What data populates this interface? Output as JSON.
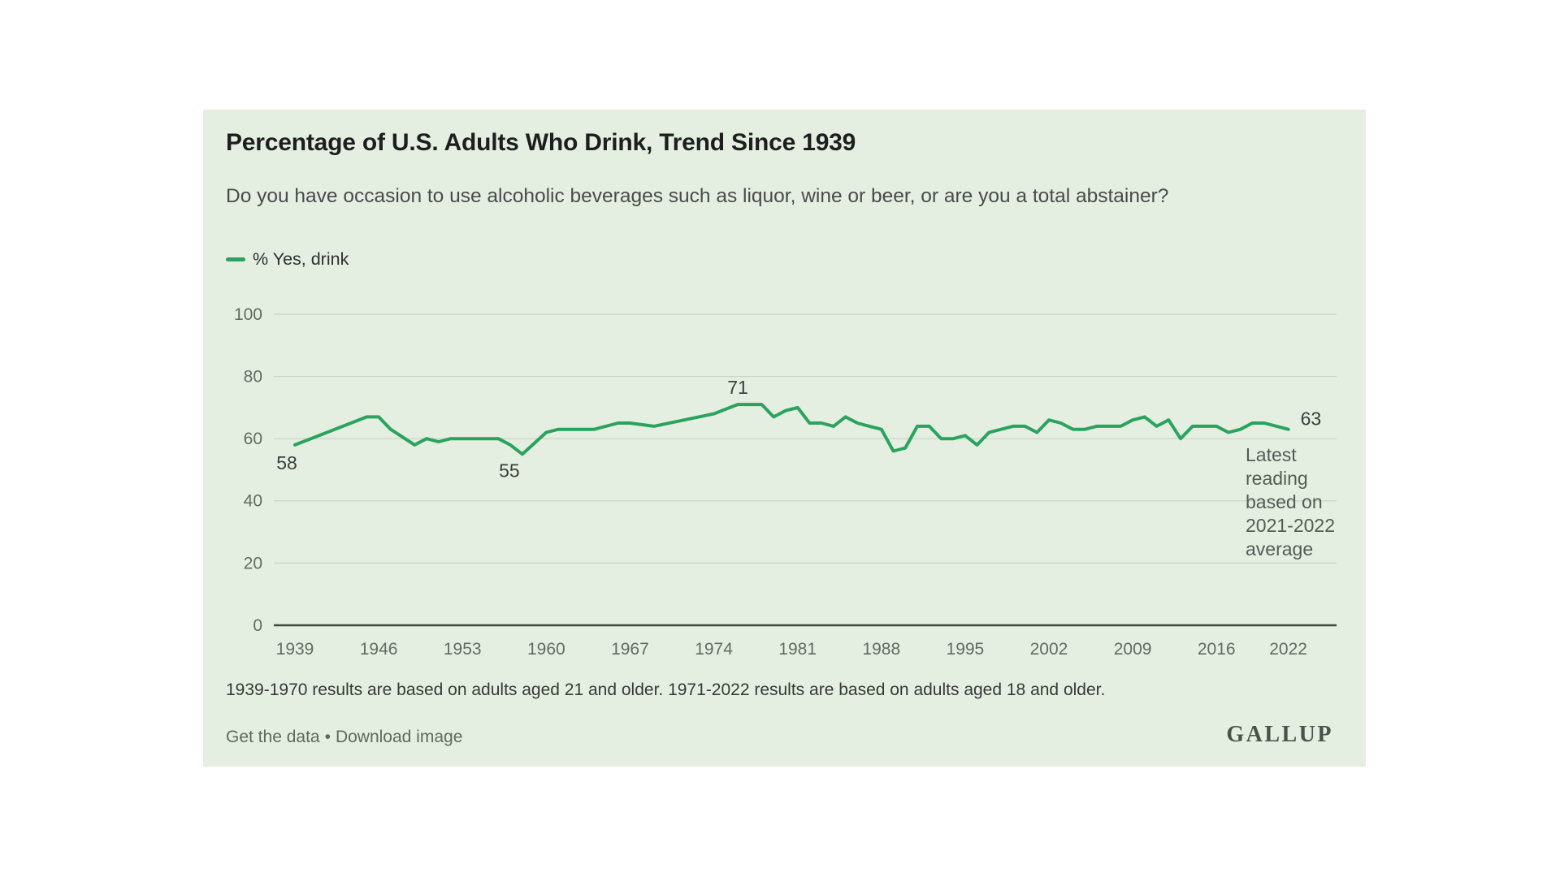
{
  "card": {
    "background": "#e4efe1"
  },
  "header": {
    "title": "Percentage of U.S. Adults Who Drink, Trend Since 1939",
    "subtitle": "Do you have occasion to use alcoholic beverages such as liquor, wine or beer, or are you a total abstainer?"
  },
  "legend": {
    "label": "% Yes, drink"
  },
  "chart_data": {
    "type": "line",
    "title": "Percentage of U.S. Adults Who Drink, Trend Since 1939",
    "question": "Do you have occasion to use alcoholic beverages such as liquor, wine or beer, or are you a total abstainer?",
    "grid": "horizontal",
    "legend_position": "top-left",
    "line_color": "#2ba35f",
    "grid_color": "#c8d4c6",
    "axis_color": "#3e473e",
    "tick_label_color": "#636b62",
    "point_label_color": "#3d3d3d",
    "ylim": [
      0,
      100
    ],
    "y_ticks": [
      0,
      20,
      40,
      60,
      80,
      100
    ],
    "x_ticks": [
      1939,
      1946,
      1953,
      1960,
      1967,
      1974,
      1981,
      1988,
      1995,
      2002,
      2009,
      2016,
      2022
    ],
    "series": [
      {
        "name": "% Yes, drink",
        "points": [
          {
            "year": 1939,
            "value": 58
          },
          {
            "year": 1945,
            "value": 67
          },
          {
            "year": 1946,
            "value": 67
          },
          {
            "year": 1947,
            "value": 63
          },
          {
            "year": 1949,
            "value": 58
          },
          {
            "year": 1950,
            "value": 60
          },
          {
            "year": 1951,
            "value": 59
          },
          {
            "year": 1952,
            "value": 60
          },
          {
            "year": 1956,
            "value": 60
          },
          {
            "year": 1957,
            "value": 58
          },
          {
            "year": 1958,
            "value": 55
          },
          {
            "year": 1960,
            "value": 62
          },
          {
            "year": 1961,
            "value": 63
          },
          {
            "year": 1964,
            "value": 63
          },
          {
            "year": 1966,
            "value": 65
          },
          {
            "year": 1967,
            "value": 65
          },
          {
            "year": 1969,
            "value": 64
          },
          {
            "year": 1974,
            "value": 68
          },
          {
            "year": 1976,
            "value": 71
          },
          {
            "year": 1978,
            "value": 71
          },
          {
            "year": 1979,
            "value": 67
          },
          {
            "year": 1980,
            "value": 69
          },
          {
            "year": 1981,
            "value": 70
          },
          {
            "year": 1982,
            "value": 65
          },
          {
            "year": 1983,
            "value": 65
          },
          {
            "year": 1984,
            "value": 64
          },
          {
            "year": 1985,
            "value": 67
          },
          {
            "year": 1986,
            "value": 65
          },
          {
            "year": 1987,
            "value": 64
          },
          {
            "year": 1988,
            "value": 63
          },
          {
            "year": 1989,
            "value": 56
          },
          {
            "year": 1990,
            "value": 57
          },
          {
            "year": 1991,
            "value": 64
          },
          {
            "year": 1992,
            "value": 64
          },
          {
            "year": 1993,
            "value": 60
          },
          {
            "year": 1994,
            "value": 60
          },
          {
            "year": 1995,
            "value": 61
          },
          {
            "year": 1996,
            "value": 58
          },
          {
            "year": 1997,
            "value": 62
          },
          {
            "year": 1998,
            "value": 63
          },
          {
            "year": 1999,
            "value": 64
          },
          {
            "year": 2000,
            "value": 64
          },
          {
            "year": 2001,
            "value": 62
          },
          {
            "year": 2002,
            "value": 66
          },
          {
            "year": 2003,
            "value": 65
          },
          {
            "year": 2004,
            "value": 63
          },
          {
            "year": 2005,
            "value": 63
          },
          {
            "year": 2006,
            "value": 64
          },
          {
            "year": 2007,
            "value": 64
          },
          {
            "year": 2008,
            "value": 64
          },
          {
            "year": 2009,
            "value": 66
          },
          {
            "year": 2010,
            "value": 67
          },
          {
            "year": 2011,
            "value": 64
          },
          {
            "year": 2012,
            "value": 66
          },
          {
            "year": 2013,
            "value": 60
          },
          {
            "year": 2014,
            "value": 64
          },
          {
            "year": 2015,
            "value": 64
          },
          {
            "year": 2016,
            "value": 64
          },
          {
            "year": 2017,
            "value": 62
          },
          {
            "year": 2018,
            "value": 63
          },
          {
            "year": 2019,
            "value": 65
          },
          {
            "year": 2020,
            "value": 65
          },
          {
            "year": 2022,
            "value": 63
          }
        ]
      }
    ],
    "point_labels": [
      {
        "year": 1939,
        "value": 58,
        "text": "58",
        "position": "below-left"
      },
      {
        "year": 1958,
        "value": 55,
        "text": "55",
        "position": "below"
      },
      {
        "year": 1976,
        "value": 71,
        "text": "71",
        "position": "above"
      },
      {
        "year": 2022,
        "value": 63,
        "text": "63",
        "position": "right"
      }
    ],
    "annotation": "Latest reading based on 2021-2022 average"
  },
  "footnote": "1939-1970 results are based on adults aged 21 and older. 1971-2022 results are based on adults aged 18 and older.",
  "footer": {
    "links": [
      {
        "label": "Get the data"
      },
      {
        "label": "Download image"
      }
    ],
    "separator": "•",
    "logo": "GALLUP"
  }
}
